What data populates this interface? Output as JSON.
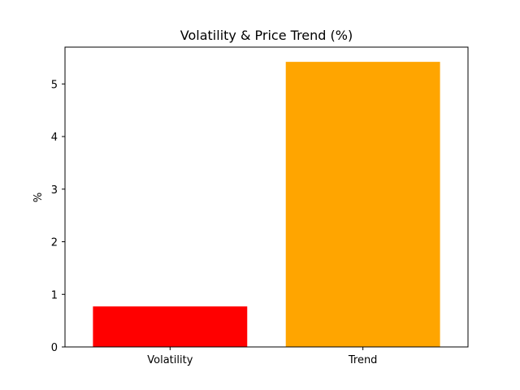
{
  "chart_data": {
    "type": "bar",
    "title": "Volatility & Price Trend (%)",
    "xlabel": "",
    "ylabel": "%",
    "categories": [
      "Volatility",
      "Trend"
    ],
    "values": [
      0.77,
      5.42
    ],
    "colors": [
      "#ff0000",
      "#ffa500"
    ],
    "ylim": [
      0,
      5.7
    ],
    "yticks": [
      0,
      1,
      2,
      3,
      4,
      5
    ],
    "grid": false,
    "legend": "none"
  }
}
